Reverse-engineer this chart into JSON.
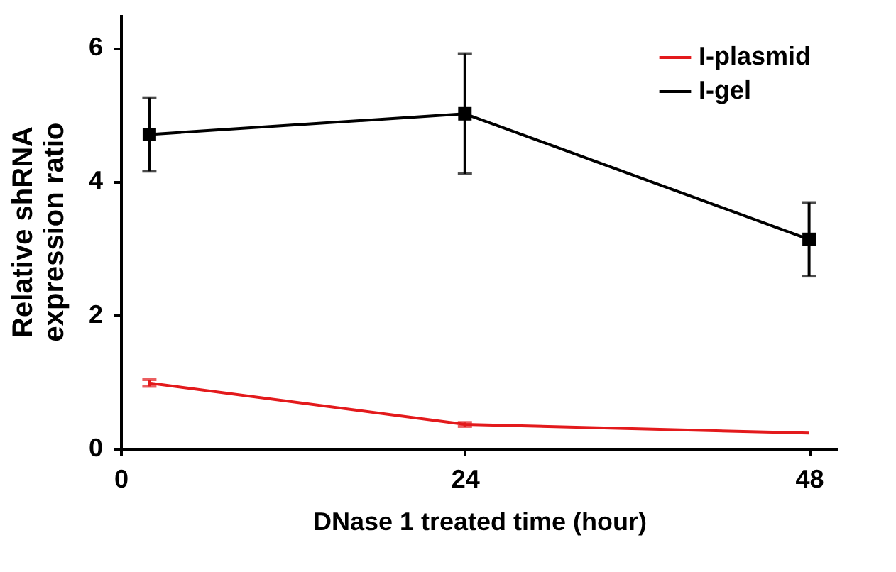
{
  "chart_data": {
    "type": "line",
    "xlabel": "DNase 1 treated time (hour)",
    "ylabel": "Relative shRNA expression ratio",
    "x": [
      2,
      24,
      48
    ],
    "xlim": [
      0,
      50
    ],
    "xticks": [
      0,
      24,
      48
    ],
    "ylim": [
      0,
      6.5
    ],
    "yticks": [
      0,
      2,
      4,
      6
    ],
    "legend": "top right",
    "grid": false,
    "series": [
      {
        "name": "I-plasmid",
        "color": "#e31a1c",
        "values": [
          0.98,
          0.36,
          0.23
        ],
        "errors": [
          0.05,
          0.03,
          null
        ],
        "marker": "none"
      },
      {
        "name": "I-gel",
        "color": "#000000",
        "values": [
          4.7,
          5.01,
          3.13
        ],
        "errors": [
          0.55,
          0.9,
          0.55
        ],
        "marker": "square"
      }
    ]
  }
}
